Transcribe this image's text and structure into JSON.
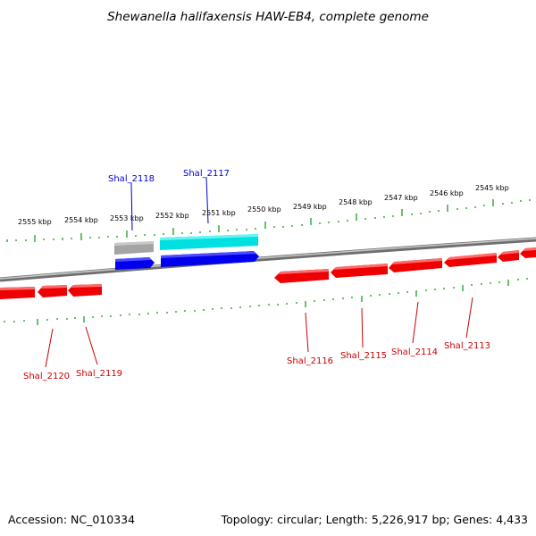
{
  "title": "Shewanella halifaxensis HAW-EB4, complete genome",
  "footer": {
    "accession": "Accession: NC_010334",
    "summary": "Topology: circular; Length: 5,226,917 bp; Genes: 4,433"
  },
  "kbp_labels": [
    "2555 kbp",
    "2554 kbp",
    "2553 kbp",
    "2552 kbp",
    "2551 kbp",
    "2550 kbp",
    "2549 kbp",
    "2548 kbp",
    "2547 kbp",
    "2546 kbp",
    "2545 kbp"
  ],
  "genes_forward": [
    {
      "id": "Shal_2118",
      "color": "#0000ee"
    },
    {
      "id": "Shal_2117",
      "color": "#0000ee"
    }
  ],
  "genes_reverse": [
    {
      "id": "Shal_2120",
      "color": "#ee0000"
    },
    {
      "id": "Shal_2119",
      "color": "#ee0000"
    },
    {
      "id": "Shal_2116",
      "color": "#ee0000"
    },
    {
      "id": "Shal_2115",
      "color": "#ee0000"
    },
    {
      "id": "Shal_2114",
      "color": "#ee0000"
    },
    {
      "id": "Shal_2113",
      "color": "#ee0000"
    }
  ],
  "colors": {
    "forward_gene": "#0000ee",
    "reverse_gene": "#ee0000",
    "rna_feature": "#00e5e5",
    "pseudo_feature": "#a0a0a0",
    "backbone": "#808080",
    "ticks": "#009900",
    "forward_label": "#0000cc",
    "reverse_label": "#cc0000"
  }
}
